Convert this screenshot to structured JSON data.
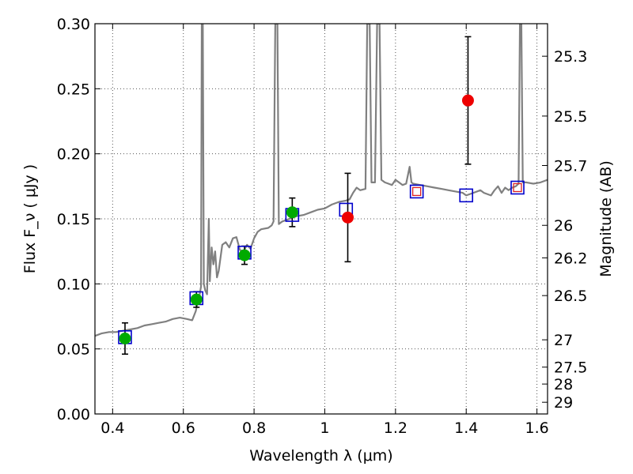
{
  "chart_data": {
    "type": "scatter",
    "xlabel": "Wavelength  λ (μm)",
    "ylabel": "Flux  F_ν  ( μJy )",
    "ylabel_right": "Magnitude (AB)",
    "xlim": [
      0.35,
      1.63
    ],
    "ylim": [
      0.0,
      0.3
    ],
    "grid": true,
    "x_ticks": [
      0.4,
      0.6,
      0.8,
      1.0,
      1.2,
      1.4,
      1.6
    ],
    "x_tick_labels": [
      "0.4",
      "0.6",
      "0.8",
      "1",
      "1.2",
      "1.4",
      "1.6"
    ],
    "y_ticks": [
      0.0,
      0.05,
      0.1,
      0.15,
      0.2,
      0.25,
      0.3
    ],
    "y_tick_labels": [
      "0.00",
      "0.05",
      "0.10",
      "0.15",
      "0.20",
      "0.25",
      "0.30"
    ],
    "right_ticks": [
      {
        "label": "25.3",
        "flux": 0.275
      },
      {
        "label": "25.5",
        "flux": 0.229
      },
      {
        "label": "25.7",
        "flux": 0.191
      },
      {
        "label": "26",
        "flux": 0.145
      },
      {
        "label": "26.2",
        "flux": 0.12
      },
      {
        "label": "26.5",
        "flux": 0.091
      },
      {
        "label": "27",
        "flux": 0.057
      },
      {
        "label": "27.5",
        "flux": 0.036
      },
      {
        "label": "28",
        "flux": 0.023
      },
      {
        "label": "29",
        "flux": 0.009
      }
    ],
    "colors": {
      "sed": "#808080",
      "green_points": "#00aa00",
      "red_points": "#ee0000",
      "model_squares": "#0000cc",
      "red_squares": "#dd2222",
      "errorbar": "#000000",
      "grid": "#555555"
    },
    "series": [
      {
        "kind": "detections_green",
        "points": [
          {
            "x": 0.435,
            "y": 0.058,
            "err": 0.012
          },
          {
            "x": 0.637,
            "y": 0.088,
            "err": 0.006
          },
          {
            "x": 0.773,
            "y": 0.122,
            "err": 0.007
          },
          {
            "x": 0.908,
            "y": 0.155,
            "err": 0.011
          }
        ]
      },
      {
        "kind": "detections_red",
        "points": [
          {
            "x": 1.065,
            "y": 0.151,
            "err": 0.034
          },
          {
            "x": 1.405,
            "y": 0.241,
            "err": 0.049
          }
        ]
      },
      {
        "kind": "model_squares",
        "points": [
          {
            "x": 0.435,
            "y": 0.059
          },
          {
            "x": 0.637,
            "y": 0.089
          },
          {
            "x": 0.773,
            "y": 0.124
          },
          {
            "x": 0.908,
            "y": 0.153
          },
          {
            "x": 1.06,
            "y": 0.157
          },
          {
            "x": 1.26,
            "y": 0.171
          },
          {
            "x": 1.4,
            "y": 0.168
          },
          {
            "x": 1.545,
            "y": 0.174
          }
        ]
      },
      {
        "kind": "upper_squares_red",
        "points": [
          {
            "x": 1.26,
            "y": 0.171
          },
          {
            "x": 1.545,
            "y": 0.174
          }
        ]
      },
      {
        "kind": "sed_spectrum",
        "points": [
          [
            0.35,
            0.06
          ],
          [
            0.37,
            0.062
          ],
          [
            0.39,
            0.063
          ],
          [
            0.41,
            0.063
          ],
          [
            0.43,
            0.064
          ],
          [
            0.45,
            0.065
          ],
          [
            0.47,
            0.066
          ],
          [
            0.49,
            0.068
          ],
          [
            0.51,
            0.069
          ],
          [
            0.53,
            0.07
          ],
          [
            0.55,
            0.071
          ],
          [
            0.57,
            0.073
          ],
          [
            0.59,
            0.074
          ],
          [
            0.61,
            0.073
          ],
          [
            0.625,
            0.072
          ],
          [
            0.635,
            0.079
          ],
          [
            0.64,
            0.085
          ],
          [
            0.645,
            0.09
          ],
          [
            0.65,
            0.098
          ],
          [
            0.652,
            0.3
          ],
          [
            0.655,
            0.3
          ],
          [
            0.658,
            0.1
          ],
          [
            0.662,
            0.095
          ],
          [
            0.667,
            0.092
          ],
          [
            0.672,
            0.15
          ],
          [
            0.675,
            0.102
          ],
          [
            0.68,
            0.128
          ],
          [
            0.685,
            0.115
          ],
          [
            0.69,
            0.125
          ],
          [
            0.695,
            0.105
          ],
          [
            0.7,
            0.11
          ],
          [
            0.71,
            0.13
          ],
          [
            0.72,
            0.132
          ],
          [
            0.73,
            0.128
          ],
          [
            0.74,
            0.135
          ],
          [
            0.75,
            0.136
          ],
          [
            0.76,
            0.126
          ],
          [
            0.77,
            0.125
          ],
          [
            0.78,
            0.13
          ],
          [
            0.79,
            0.127
          ],
          [
            0.8,
            0.135
          ],
          [
            0.81,
            0.14
          ],
          [
            0.82,
            0.142
          ],
          [
            0.84,
            0.143
          ],
          [
            0.85,
            0.145
          ],
          [
            0.855,
            0.148
          ],
          [
            0.86,
            0.3
          ],
          [
            0.866,
            0.3
          ],
          [
            0.87,
            0.146
          ],
          [
            0.88,
            0.148
          ],
          [
            0.9,
            0.15
          ],
          [
            0.92,
            0.152
          ],
          [
            0.94,
            0.153
          ],
          [
            0.96,
            0.155
          ],
          [
            0.98,
            0.157
          ],
          [
            1.0,
            0.158
          ],
          [
            1.02,
            0.161
          ],
          [
            1.04,
            0.163
          ],
          [
            1.06,
            0.164
          ],
          [
            1.07,
            0.165
          ],
          [
            1.08,
            0.17
          ],
          [
            1.09,
            0.174
          ],
          [
            1.1,
            0.172
          ],
          [
            1.115,
            0.173
          ],
          [
            1.12,
            0.3
          ],
          [
            1.127,
            0.3
          ],
          [
            1.132,
            0.178
          ],
          [
            1.142,
            0.178
          ],
          [
            1.148,
            0.3
          ],
          [
            1.155,
            0.3
          ],
          [
            1.16,
            0.18
          ],
          [
            1.17,
            0.178
          ],
          [
            1.18,
            0.177
          ],
          [
            1.19,
            0.176
          ],
          [
            1.2,
            0.18
          ],
          [
            1.21,
            0.178
          ],
          [
            1.22,
            0.176
          ],
          [
            1.23,
            0.177
          ],
          [
            1.24,
            0.19
          ],
          [
            1.245,
            0.178
          ],
          [
            1.25,
            0.177
          ],
          [
            1.27,
            0.176
          ],
          [
            1.29,
            0.175
          ],
          [
            1.31,
            0.174
          ],
          [
            1.33,
            0.173
          ],
          [
            1.35,
            0.172
          ],
          [
            1.37,
            0.171
          ],
          [
            1.39,
            0.17
          ],
          [
            1.4,
            0.168
          ],
          [
            1.42,
            0.17
          ],
          [
            1.44,
            0.172
          ],
          [
            1.45,
            0.17
          ],
          [
            1.47,
            0.168
          ],
          [
            1.48,
            0.172
          ],
          [
            1.49,
            0.175
          ],
          [
            1.5,
            0.17
          ],
          [
            1.51,
            0.174
          ],
          [
            1.52,
            0.172
          ],
          [
            1.53,
            0.174
          ],
          [
            1.54,
            0.175
          ],
          [
            1.548,
            0.177
          ],
          [
            1.552,
            0.3
          ],
          [
            1.556,
            0.3
          ],
          [
            1.56,
            0.178
          ],
          [
            1.57,
            0.178
          ],
          [
            1.59,
            0.177
          ],
          [
            1.61,
            0.178
          ],
          [
            1.63,
            0.18
          ]
        ]
      }
    ]
  }
}
